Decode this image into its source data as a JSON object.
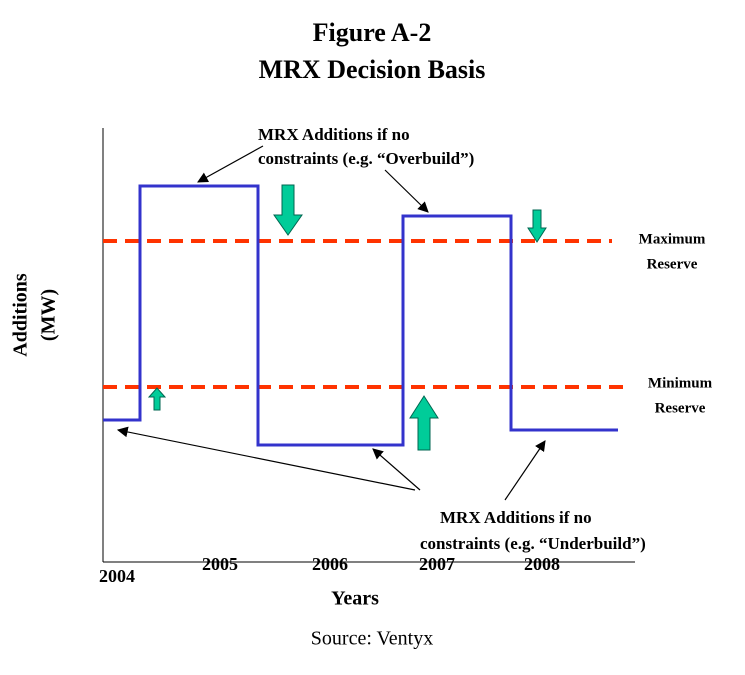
{
  "title": [
    "Figure A-2",
    "MRX Decision Basis"
  ],
  "y_axis_label": [
    "Additions",
    "(MW)"
  ],
  "x_axis_label": "Years",
  "x_labels": [
    "2004",
    "2005",
    "2006",
    "2007",
    "2008"
  ],
  "reference_lines": [
    {
      "label": [
        "Maximum",
        "Reserve"
      ]
    },
    {
      "label": [
        "Minimum",
        "Reserve"
      ]
    }
  ],
  "annotations": [
    {
      "text": [
        "MRX Additions if no",
        "constraints (e.g. “Overbuild”)"
      ]
    },
    {
      "text": [
        "MRX Additions if no",
        "constraints (e.g. “Underbuild”)"
      ]
    }
  ],
  "source": "Source: Ventyx"
}
